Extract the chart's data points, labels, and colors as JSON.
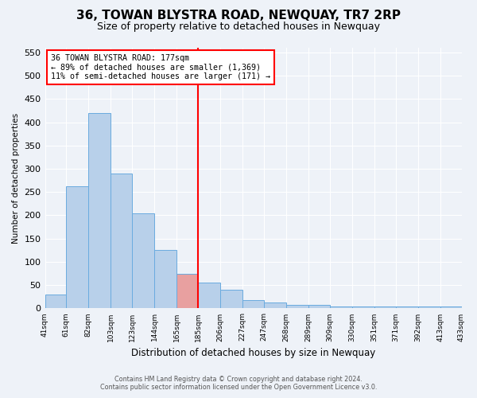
{
  "title": "36, TOWAN BLYSTRA ROAD, NEWQUAY, TR7 2RP",
  "subtitle": "Size of property relative to detached houses in Newquay",
  "xlabel": "Distribution of detached houses by size in Newquay",
  "ylabel": "Number of detached properties",
  "bar_values": [
    30,
    262,
    420,
    290,
    205,
    125,
    75,
    55,
    40,
    18,
    12,
    8,
    7,
    5
  ],
  "bin_edges": [
    41,
    61,
    82,
    103,
    123,
    144,
    165,
    185,
    206,
    227,
    247,
    268,
    289,
    309,
    330
  ],
  "x_labels": [
    "41sqm",
    "61sqm",
    "82sqm",
    "103sqm",
    "123sqm",
    "144sqm",
    "165sqm",
    "185sqm",
    "206sqm",
    "227sqm",
    "247sqm",
    "268sqm",
    "289sqm",
    "309sqm",
    "330sqm",
    "351sqm",
    "371sqm",
    "392sqm",
    "413sqm",
    "433sqm"
  ],
  "all_xtick_positions": [
    41,
    61,
    82,
    103,
    123,
    144,
    165,
    185,
    206,
    227,
    247,
    268,
    289,
    309,
    330,
    351,
    371,
    392,
    413,
    433
  ],
  "extra_bar_values": [
    5,
    5,
    5,
    5,
    5
  ],
  "extra_bin_edges": [
    330,
    351,
    371,
    392,
    413,
    433
  ],
  "bar_color": "#b8d0ea",
  "bar_edge_color": "#6aabdf",
  "highlight_bar_index": 6,
  "highlight_bar_color": "#e8a0a0",
  "red_line_x": 185,
  "annotation_title": "36 TOWAN BLYSTRA ROAD: 177sqm",
  "annotation_line1": "← 89% of detached houses are smaller (1,369)",
  "annotation_line2": "11% of semi-detached houses are larger (171) →",
  "ylim": [
    0,
    560
  ],
  "yticks": [
    0,
    50,
    100,
    150,
    200,
    250,
    300,
    350,
    400,
    450,
    500,
    550
  ],
  "footer1": "Contains HM Land Registry data © Crown copyright and database right 2024.",
  "footer2": "Contains public sector information licensed under the Open Government Licence v3.0.",
  "background_color": "#eef2f8",
  "grid_color": "#ffffff",
  "title_fontsize": 11,
  "subtitle_fontsize": 9
}
